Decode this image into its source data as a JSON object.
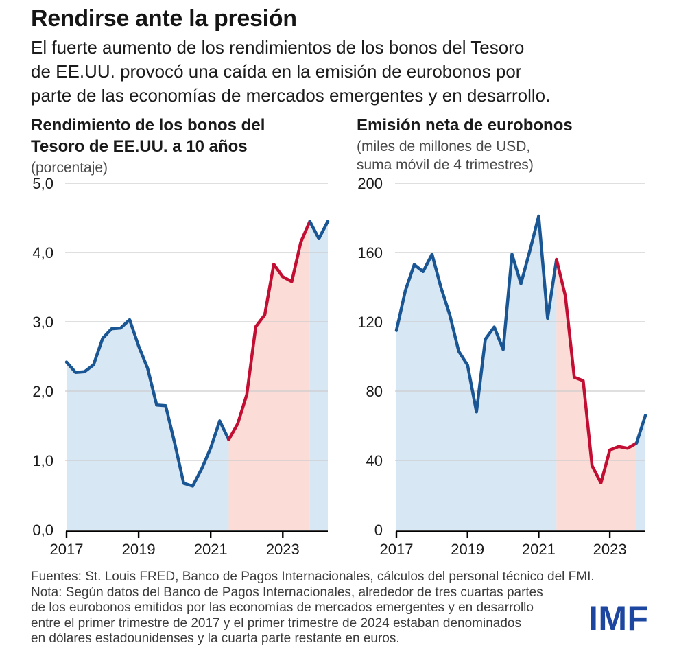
{
  "header": {
    "title": "Rendirse ante la presión",
    "subtitle": "El fuerte aumento de los rendimientos de los bonos del Tesoro\nde EE.UU. provocó una caída en la emisión de eurobonos por\nparte de las economías de mercados emergentes y en desarrollo."
  },
  "chart_data": [
    {
      "type": "area",
      "title": "Rendimiento de los bonos del\nTesoro de EE.UU. a 10 años",
      "subtitle": "(porcentaje)",
      "x_start_year": 2017,
      "points_per_year": 4,
      "x_end_label": "2024Q2",
      "values": [
        2.42,
        2.27,
        2.28,
        2.38,
        2.76,
        2.9,
        2.91,
        3.03,
        2.65,
        2.33,
        1.8,
        1.79,
        1.25,
        0.67,
        0.63,
        0.88,
        1.18,
        1.57,
        1.3,
        1.53,
        1.95,
        2.93,
        3.1,
        3.83,
        3.65,
        3.58,
        4.15,
        4.45,
        4.2,
        4.45
      ],
      "highlight": {
        "start_index": 18,
        "end_index": 27,
        "meaning": "periodo de fuerte aumento (rojo)"
      },
      "ylim": [
        0,
        5
      ],
      "yticks": [
        0,
        1,
        2,
        3,
        4,
        5
      ],
      "ytick_labels": [
        "0,0",
        "1,0",
        "2,0",
        "3,0",
        "4,0",
        "5,0"
      ],
      "xtick_years": [
        2017,
        2019,
        2021,
        2023
      ],
      "xtick_labels": [
        "2017",
        "2019",
        "2021",
        "2023"
      ],
      "grid": true,
      "legend": "none"
    },
    {
      "type": "area",
      "title": "Emisión neta de eurobonos",
      "subtitle": "(miles de millones de USD,\nsuma móvil de 4 trimestres)",
      "x_start_year": 2017,
      "points_per_year": 4,
      "x_end_label": "2024Q1",
      "values": [
        115,
        138,
        153,
        149,
        159,
        140,
        124,
        103,
        95,
        68,
        110,
        117,
        104,
        159,
        142,
        161,
        181,
        122,
        156,
        135,
        88,
        86,
        37,
        27,
        46,
        48,
        47,
        50,
        66
      ],
      "highlight": {
        "start_index": 18,
        "end_index": 27,
        "meaning": "periodo de caída de emisión (rojo)"
      },
      "ylim": [
        0,
        200
      ],
      "yticks": [
        0,
        40,
        80,
        120,
        160,
        200
      ],
      "ytick_labels": [
        "0",
        "40",
        "80",
        "120",
        "160",
        "200"
      ],
      "xtick_years": [
        2017,
        2019,
        2021,
        2023
      ],
      "xtick_labels": [
        "2017",
        "2019",
        "2021",
        "2023"
      ],
      "grid": true,
      "legend": "none"
    }
  ],
  "colors": {
    "line_blue": "#1a5694",
    "line_red": "#c30e33",
    "fill_blue": "#d8e7f4",
    "fill_red": "#fcdcd6",
    "grid": "#cccccc",
    "axis": "#000000",
    "text": "#1a1a1a",
    "logo_blue": "#1c46a0"
  },
  "footer": {
    "text": "Fuentes: St. Louis FRED, Banco de Pagos Internacionales, cálculos del personal técnico del FMI.\nNota: Según datos del Banco de Pagos Internacionales, alrededor de tres cuartas partes\nde los eurobonos emitidos por las economías de mercados emergentes y en desarrollo\nentre el primer trimestre de 2017 y el primer trimestre de 2024 estaban denominados\nen dólares estadounidenses y la cuarta parte restante en euros.",
    "logo": "IMF"
  }
}
